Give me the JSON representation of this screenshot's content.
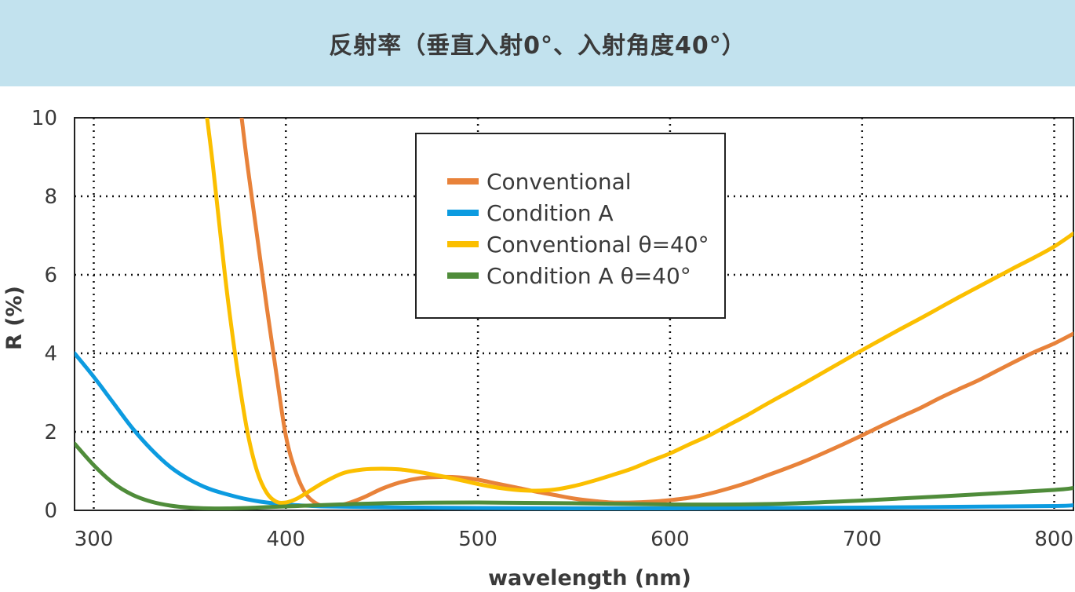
{
  "header": {
    "title": "反射率（垂直入射0°、入射角度40°）",
    "background": "#c2e2ee"
  },
  "chart_data": {
    "type": "line",
    "title": "反射率（垂直入射0°、入射角度40°）",
    "xlabel": "wavelength (nm)",
    "ylabel": "R (%)",
    "xlim": [
      290,
      810
    ],
    "ylim": [
      0,
      10
    ],
    "xticks": [
      300,
      400,
      500,
      600,
      700,
      800
    ],
    "yticks": [
      0,
      2,
      4,
      6,
      8,
      10
    ],
    "grid": true,
    "legend_position": "top-center",
    "series": [
      {
        "name": "Conventional",
        "color": "#e8823a",
        "x": [
          377,
          380,
          385,
          390,
          395,
          400,
          405,
          410,
          415,
          420,
          430,
          440,
          450,
          460,
          470,
          480,
          490,
          500,
          510,
          520,
          530,
          540,
          550,
          560,
          570,
          580,
          590,
          600,
          610,
          620,
          630,
          640,
          650,
          660,
          670,
          680,
          690,
          700,
          710,
          720,
          730,
          740,
          750,
          760,
          770,
          780,
          790,
          800,
          810
        ],
        "y": [
          10.0,
          8.8,
          7.0,
          5.2,
          3.5,
          1.9,
          1.0,
          0.45,
          0.2,
          0.12,
          0.15,
          0.32,
          0.55,
          0.72,
          0.82,
          0.85,
          0.84,
          0.78,
          0.68,
          0.58,
          0.48,
          0.39,
          0.3,
          0.24,
          0.2,
          0.2,
          0.22,
          0.26,
          0.32,
          0.42,
          0.55,
          0.7,
          0.88,
          1.06,
          1.25,
          1.46,
          1.68,
          1.91,
          2.15,
          2.38,
          2.6,
          2.85,
          3.08,
          3.3,
          3.55,
          3.8,
          4.04,
          4.25,
          4.5
        ]
      },
      {
        "name": "Condition A",
        "color": "#0c9be0",
        "x": [
          290,
          300,
          310,
          320,
          330,
          340,
          350,
          360,
          370,
          380,
          390,
          400,
          410,
          420,
          450,
          500,
          550,
          600,
          650,
          700,
          750,
          800,
          810
        ],
        "y": [
          4.0,
          3.4,
          2.75,
          2.1,
          1.55,
          1.1,
          0.78,
          0.55,
          0.4,
          0.28,
          0.2,
          0.15,
          0.12,
          0.1,
          0.08,
          0.06,
          0.05,
          0.05,
          0.06,
          0.07,
          0.09,
          0.11,
          0.13
        ]
      },
      {
        "name": "Conventional θ=40°",
        "color": "#fbbf00",
        "x": [
          359,
          362,
          366,
          370,
          375,
          380,
          385,
          390,
          395,
          400,
          405,
          410,
          420,
          430,
          440,
          450,
          460,
          470,
          480,
          490,
          500,
          510,
          520,
          530,
          540,
          550,
          560,
          570,
          580,
          590,
          600,
          610,
          620,
          630,
          640,
          650,
          660,
          670,
          680,
          690,
          700,
          710,
          720,
          730,
          740,
          750,
          760,
          770,
          780,
          790,
          800,
          810
        ],
        "y": [
          10.0,
          8.8,
          7.0,
          5.3,
          3.5,
          2.0,
          1.0,
          0.45,
          0.22,
          0.2,
          0.28,
          0.42,
          0.72,
          0.95,
          1.04,
          1.06,
          1.04,
          0.97,
          0.88,
          0.78,
          0.67,
          0.58,
          0.52,
          0.5,
          0.53,
          0.62,
          0.75,
          0.9,
          1.06,
          1.26,
          1.45,
          1.68,
          1.9,
          2.16,
          2.42,
          2.7,
          2.97,
          3.24,
          3.52,
          3.8,
          4.08,
          4.35,
          4.62,
          4.88,
          5.15,
          5.42,
          5.68,
          5.94,
          6.2,
          6.45,
          6.72,
          7.05
        ]
      },
      {
        "name": "Condition A θ=40°",
        "color": "#4f8c3a",
        "x": [
          290,
          300,
          310,
          320,
          330,
          340,
          350,
          360,
          370,
          380,
          400,
          450,
          500,
          550,
          600,
          650,
          700,
          750,
          800,
          810
        ],
        "y": [
          1.7,
          1.15,
          0.7,
          0.4,
          0.22,
          0.12,
          0.07,
          0.05,
          0.05,
          0.06,
          0.1,
          0.18,
          0.2,
          0.18,
          0.15,
          0.16,
          0.25,
          0.38,
          0.52,
          0.57
        ]
      }
    ]
  },
  "legend": {
    "items": [
      {
        "label": "Conventional",
        "color": "#e8823a"
      },
      {
        "label": "Condition A",
        "color": "#0c9be0"
      },
      {
        "label": "Conventional θ=40°",
        "color": "#fbbf00"
      },
      {
        "label": "Condition A  θ=40°",
        "color": "#4f8c3a"
      }
    ]
  }
}
